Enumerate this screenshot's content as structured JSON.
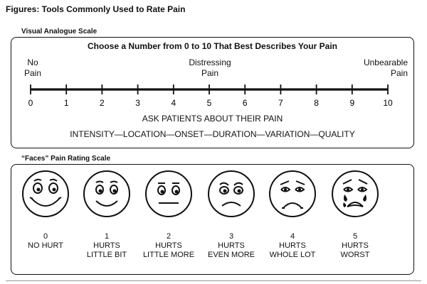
{
  "figure_title": "Figures: Tools Commonly Used to Rate Pain",
  "vas": {
    "section_title": "Visual Analogue Scale",
    "heading": "Choose a Number from 0 to 10 That Best Describes Your Pain",
    "anchor_left": {
      "line1": "No",
      "line2": "Pain"
    },
    "anchor_mid": {
      "line1": "Distressing",
      "line2": "Pain"
    },
    "anchor_right": {
      "line1": "Unbearable",
      "line2": "Pain"
    },
    "ticks": [
      "0",
      "1",
      "2",
      "3",
      "4",
      "5",
      "6",
      "7",
      "8",
      "9",
      "10"
    ],
    "ask_line": "ASK PATIENTS ABOUT THEIR PAIN",
    "quality_line": "INTENSITY—LOCATION—ONSET—DURATION—VARIATION—QUALITY"
  },
  "faces": {
    "section_title": "“Faces” Pain Rating Scale",
    "items": [
      {
        "num": "0",
        "line1": "NO HURT",
        "line2": "",
        "icon": "very-happy-face-icon"
      },
      {
        "num": "1",
        "line1": "HURTS",
        "line2": "LITTLE BIT",
        "icon": "happy-face-icon"
      },
      {
        "num": "2",
        "line1": "HURTS",
        "line2": "LITTLE MORE",
        "icon": "neutral-face-icon"
      },
      {
        "num": "3",
        "line1": "HURTS",
        "line2": "EVEN MORE",
        "icon": "sad-face-icon"
      },
      {
        "num": "4",
        "line1": "HURTS",
        "line2": "WHOLE LOT",
        "icon": "very-sad-face-icon"
      },
      {
        "num": "5",
        "line1": "HURTS",
        "line2": "WORST",
        "icon": "crying-face-icon"
      }
    ]
  }
}
